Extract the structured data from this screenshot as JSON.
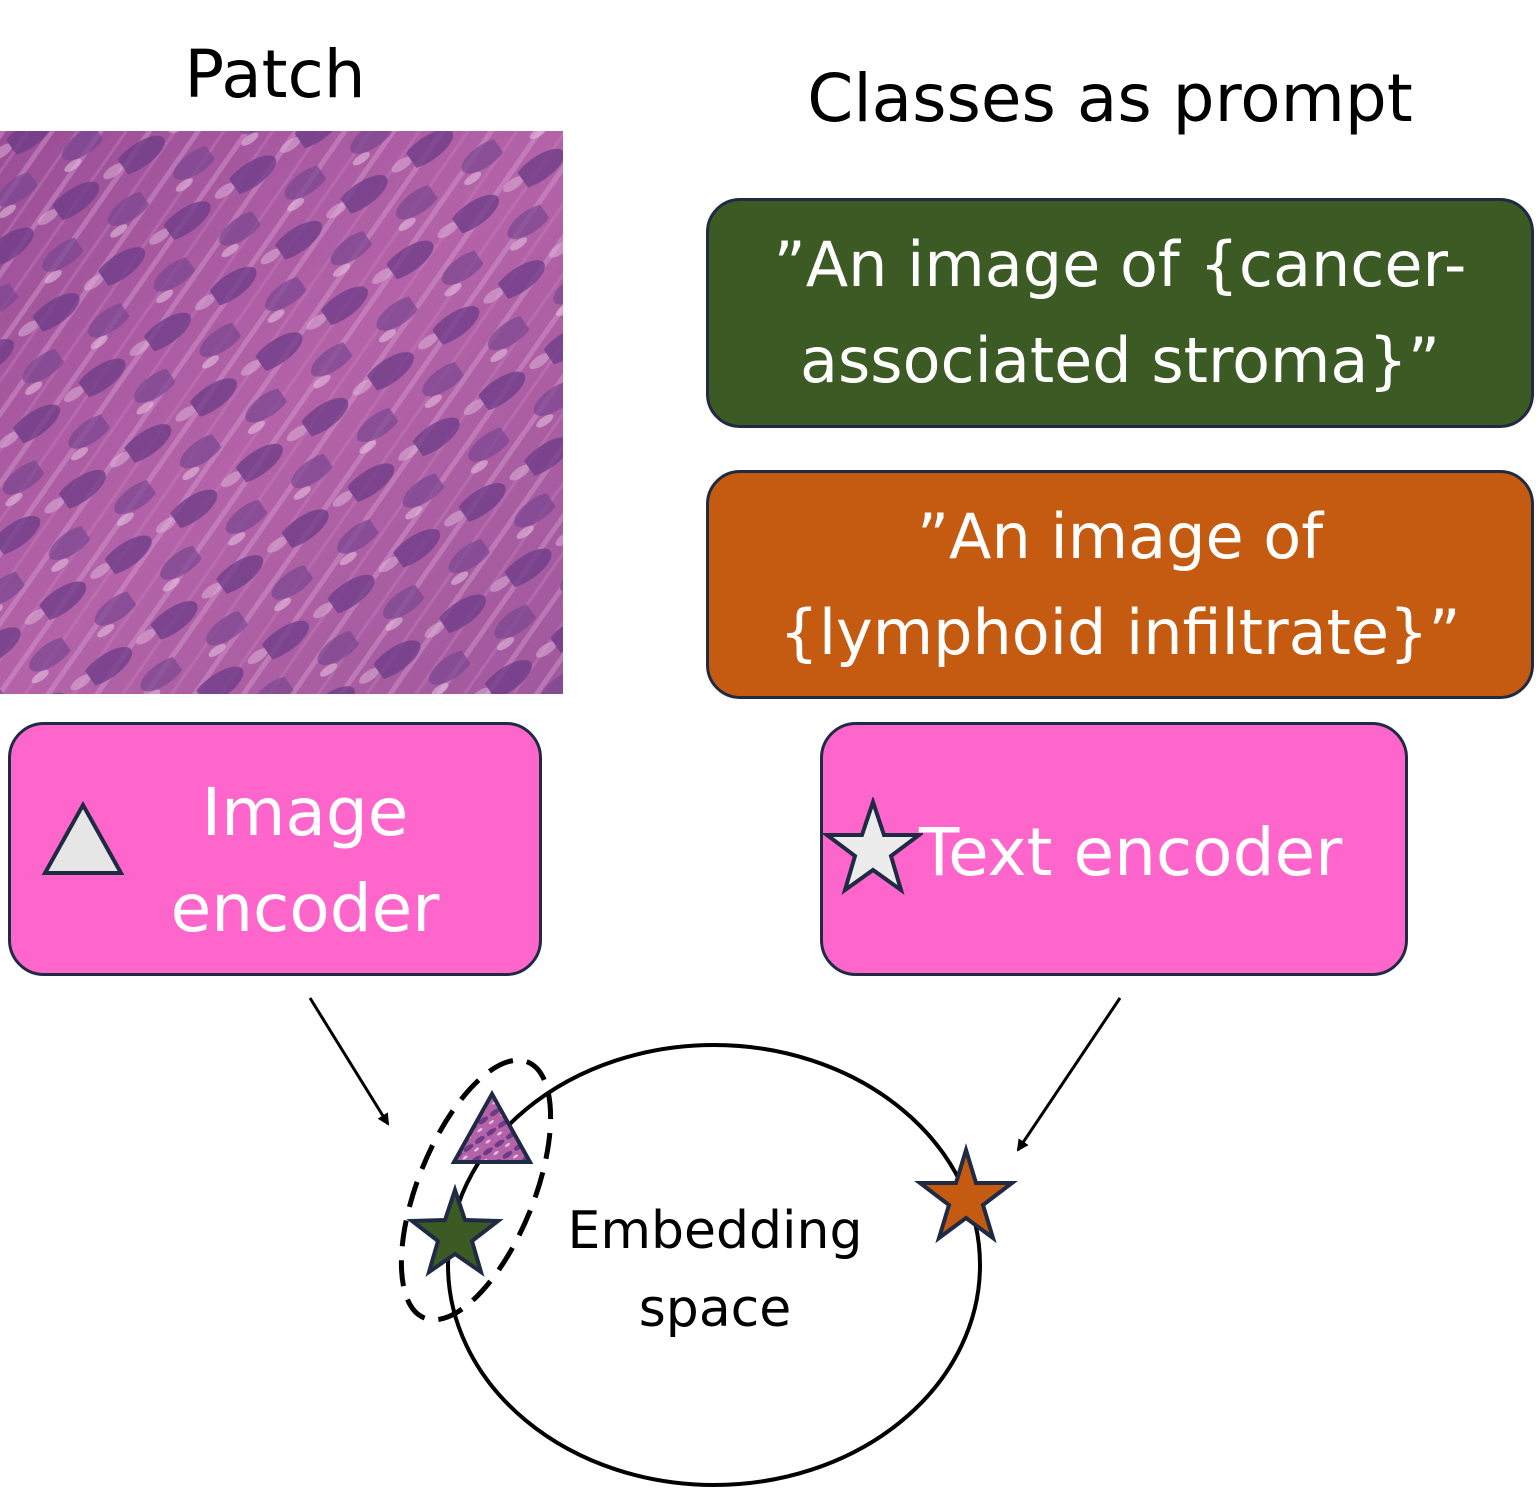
{
  "headings": {
    "patch": "Patch",
    "classes": "Classes as prompt"
  },
  "prompts": {
    "stroma": {
      "line1": "”An image of {cancer-",
      "line2": "associated stroma}”",
      "color": "#3c5a24"
    },
    "lymphoid": {
      "line1": "”An image of",
      "line2": "{lymphoid infiltrate}”",
      "color": "#c55a11"
    }
  },
  "encoders": {
    "image": {
      "line1": "Image",
      "line2": "encoder",
      "icon": "triangle-icon",
      "color": "#ff66cc"
    },
    "text": {
      "label": "Text encoder",
      "icon": "star-icon",
      "color": "#ff66cc"
    }
  },
  "embedding": {
    "line1": "Embedding",
    "line2": "space"
  },
  "icons": {
    "patch": "histology-patch-image",
    "embedded_image": "patch-triangle-icon",
    "embedded_stroma": "green-star-icon",
    "embedded_lymphoid": "orange-star-icon"
  }
}
